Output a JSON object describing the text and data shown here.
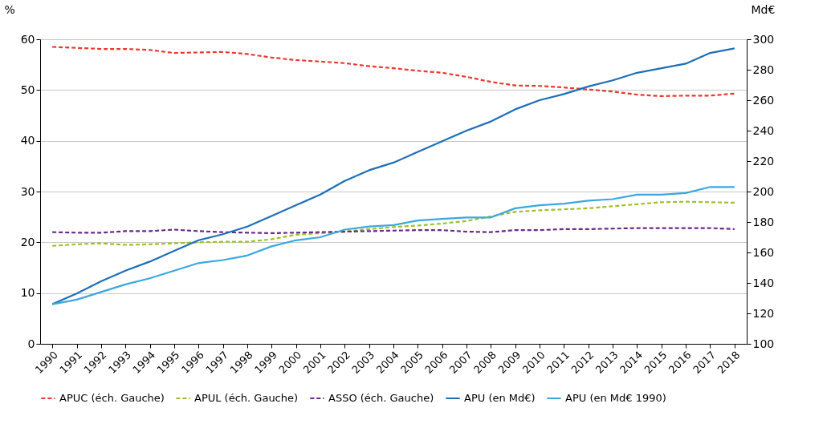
{
  "chart_data": {
    "type": "line",
    "ylabel": "%",
    "y2label": "Md€",
    "categories": [
      "1990",
      "1991",
      "1992",
      "1993",
      "1994",
      "1995",
      "1996",
      "1997",
      "1998",
      "1999",
      "2000",
      "2001",
      "2002",
      "2003",
      "2004",
      "2005",
      "2006",
      "2007",
      "2008",
      "2009",
      "2010",
      "2011",
      "2012",
      "2013",
      "2014",
      "2015",
      "2016",
      "2017",
      "2018"
    ],
    "series": [
      {
        "name": "APUC (éch. Gauche)",
        "color": "#e8392f",
        "line_style": "dashed",
        "values": [
          58.5,
          58.3,
          58.1,
          58.1,
          57.9,
          57.3,
          57.4,
          57.5,
          57.1,
          56.4,
          55.9,
          55.6,
          55.3,
          54.7,
          54.3,
          53.8,
          53.4,
          52.6,
          51.6,
          50.9,
          50.8,
          50.5,
          50.1,
          49.7,
          49.1,
          48.8,
          48.9,
          48.9,
          49.3
        ]
      },
      {
        "name": "APUL (éch. Gauche)",
        "color": "#9dc12a",
        "line_style": "dashed",
        "values": [
          19.3,
          19.6,
          19.8,
          19.5,
          19.6,
          19.8,
          20.0,
          20.1,
          20.1,
          20.6,
          21.5,
          21.8,
          22.1,
          22.6,
          23.0,
          23.3,
          23.7,
          24.2,
          25.1,
          26.0,
          26.3,
          26.5,
          26.7,
          27.1,
          27.5,
          27.9,
          28.0,
          27.9,
          27.8
        ]
      },
      {
        "name": "ASSO (éch. Gauche)",
        "color": "#6a2a8c",
        "line_style": "dashed",
        "values": [
          22.0,
          21.9,
          21.9,
          22.2,
          22.2,
          22.5,
          22.2,
          22.0,
          21.9,
          21.8,
          21.9,
          22.0,
          22.1,
          22.2,
          22.3,
          22.4,
          22.4,
          22.1,
          22.0,
          22.4,
          22.4,
          22.6,
          22.6,
          22.7,
          22.8,
          22.8,
          22.8,
          22.8,
          22.6
        ]
      },
      {
        "name": "APU (en Md€)",
        "color": "#1f6fb8",
        "line_style": "solid",
        "axis": "y2",
        "values": [
          126,
          133,
          141,
          148,
          154,
          161,
          168,
          172,
          177,
          184,
          191,
          198,
          207,
          214,
          219,
          226,
          233,
          240,
          246,
          254,
          260,
          264,
          269,
          273,
          278,
          281,
          284,
          291,
          294
        ]
      },
      {
        "name": "APU (en Md€ 1990)",
        "color": "#3aa8e0",
        "line_style": "solid",
        "axis": "y2",
        "values": [
          126,
          129,
          134,
          139,
          143,
          148,
          153,
          155,
          158,
          164,
          168,
          170,
          175,
          177,
          178,
          181,
          182,
          183,
          183,
          189,
          191,
          192,
          194,
          195,
          198,
          198,
          199,
          203,
          203
        ]
      }
    ],
    "ylim": [
      0,
      60
    ],
    "yticks": [
      0,
      10,
      20,
      30,
      40,
      50,
      60
    ],
    "y2lim": [
      100,
      300
    ],
    "y2ticks": [
      100,
      120,
      140,
      160,
      180,
      200,
      220,
      240,
      260,
      280,
      300
    ],
    "grid": "y",
    "legend": "bottom",
    "marker": "none"
  }
}
